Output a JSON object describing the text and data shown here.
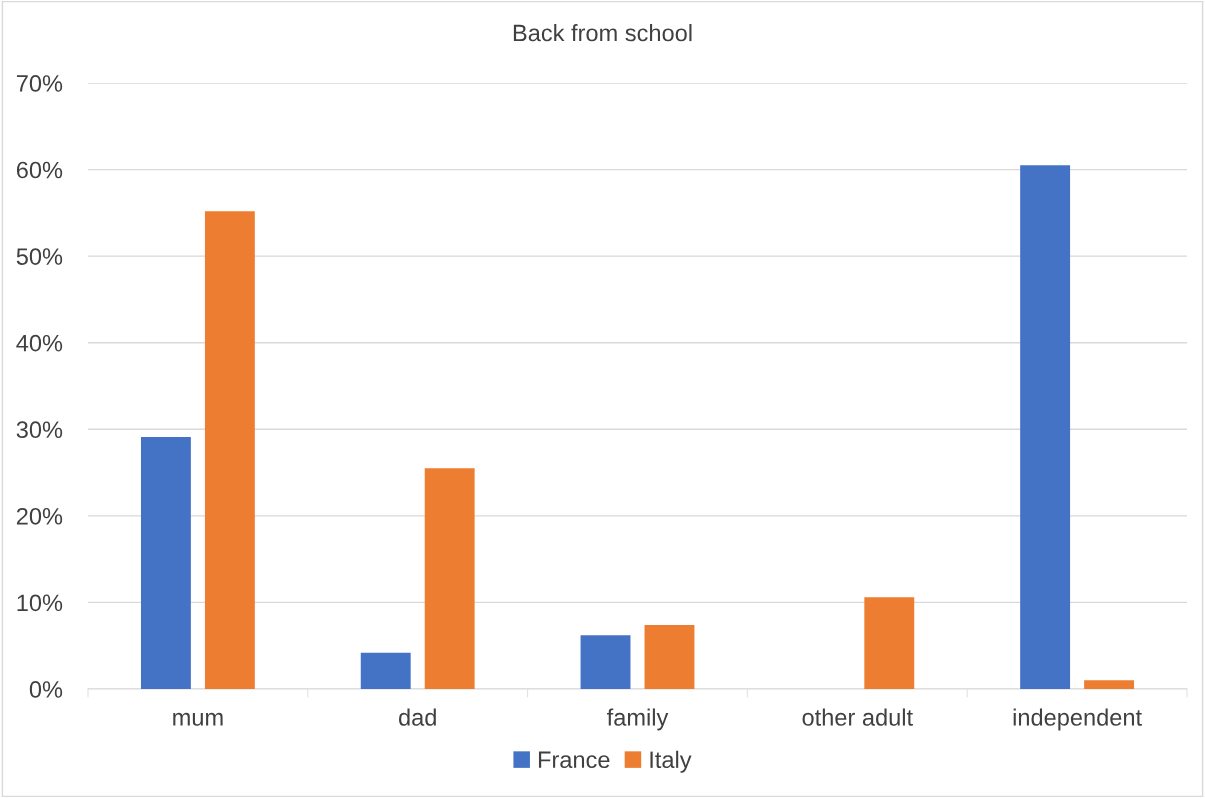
{
  "chart_data": {
    "type": "bar",
    "title": "Back from school",
    "categories": [
      "mum",
      "dad",
      "family",
      "other adult",
      "independent"
    ],
    "series": [
      {
        "name": "France",
        "color": "#4472c4",
        "values": [
          29.1,
          4.2,
          6.2,
          0,
          60.5
        ]
      },
      {
        "name": "Italy",
        "color": "#ed7d31",
        "values": [
          55.2,
          25.5,
          7.4,
          10.6,
          1.0
        ]
      }
    ],
    "ylim": [
      0,
      70
    ],
    "yticks": [
      {
        "value": 0,
        "label": "0%"
      },
      {
        "value": 10,
        "label": "10%"
      },
      {
        "value": 20,
        "label": "20%"
      },
      {
        "value": 30,
        "label": "30%"
      },
      {
        "value": 40,
        "label": "40%"
      },
      {
        "value": 50,
        "label": "50%"
      },
      {
        "value": 60,
        "label": "60%"
      },
      {
        "value": 70,
        "label": "70%"
      }
    ],
    "grid": "y",
    "legend": "bottom"
  }
}
